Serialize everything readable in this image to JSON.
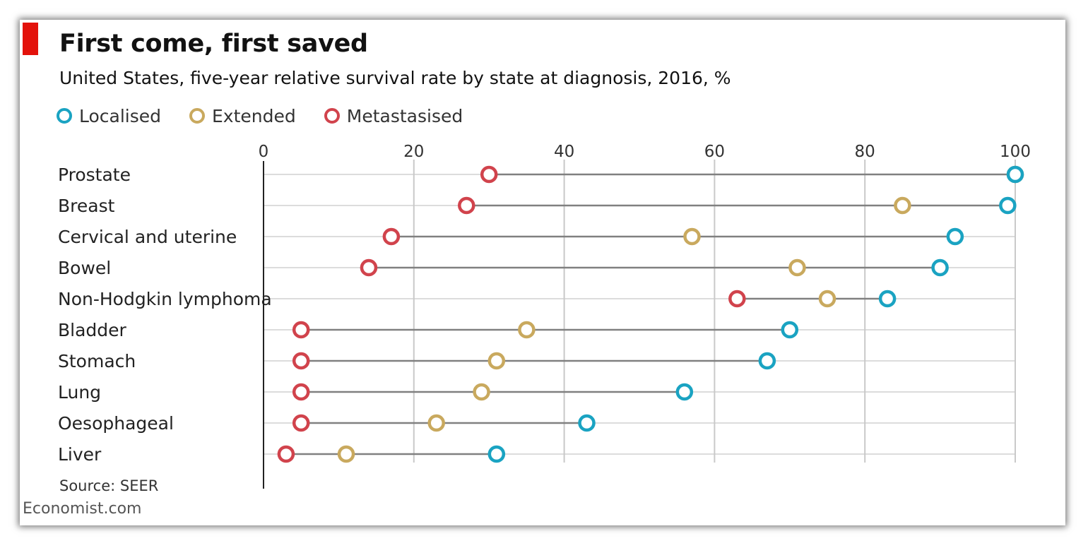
{
  "title": "First come, first saved",
  "subtitle": "United States, five-year relative survival rate by state at diagnosis, 2016, %",
  "source": "Source: SEER",
  "brand": "Economist.com",
  "colors": {
    "accent": "#e3120b",
    "localised": "#1aa3c2",
    "extended": "#c9a95e",
    "metastasised": "#d1434c",
    "connector": "#808080",
    "grid": "#c9c9c9"
  },
  "chart_data": {
    "type": "dot",
    "xlim": [
      0,
      100
    ],
    "xticks": [
      0,
      20,
      40,
      60,
      80,
      100
    ],
    "legend_position": "top-left",
    "categories": [
      "Prostate",
      "Breast",
      "Cervical and uterine",
      "Bowel",
      "Non-Hodgkin lymphoma",
      "Bladder",
      "Stomach",
      "Lung",
      "Oesophageal",
      "Liver"
    ],
    "series": [
      {
        "name": "Localised",
        "color": "#1aa3c2",
        "values": [
          100,
          99,
          92,
          90,
          83,
          70,
          67,
          56,
          43,
          31
        ]
      },
      {
        "name": "Extended",
        "color": "#c9a95e",
        "values": [
          100,
          85,
          57,
          71,
          75,
          35,
          31,
          29,
          23,
          11
        ]
      },
      {
        "name": "Metastasised",
        "color": "#d1434c",
        "values": [
          30,
          27,
          17,
          14,
          63,
          5,
          5,
          5,
          5,
          3
        ]
      }
    ]
  }
}
